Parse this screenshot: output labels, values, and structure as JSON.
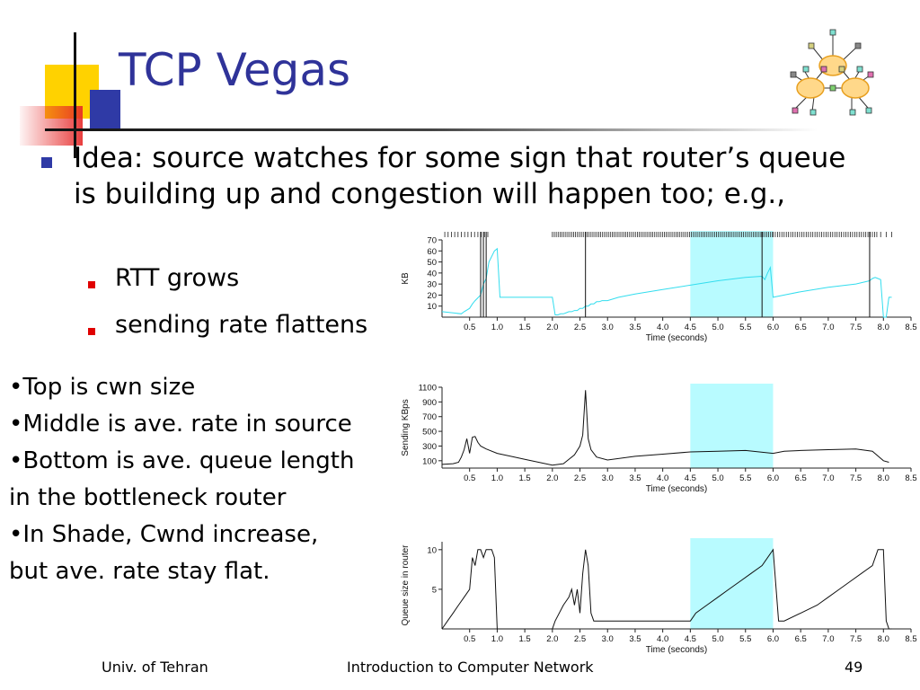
{
  "slide": {
    "title": "TCP Vegas",
    "bullet": "Idea: source watches for some sign that router’s queue is building up and congestion will happen too; e.g.,",
    "sub_bullets": [
      "RTT grows",
      "sending rate flattens"
    ],
    "notes": [
      "•Top is cwn size",
      "•Middle is ave. rate in source",
      "•Bottom is ave. queue length",
      "in the bottleneck router",
      "•In Shade, Cwnd increase,",
      "but ave. rate stay flat."
    ]
  },
  "footer": {
    "left": "Univ. of Tehran",
    "center": "Introduction to Computer Network",
    "page": "49"
  },
  "colors": {
    "title": "#2f3399",
    "accent_yellow": "#ffd200",
    "accent_blue": "#2f3aa6",
    "accent_red": "#e02020",
    "shade": "#b8fbff",
    "cwnd_line": "#33ddee"
  },
  "icons": {
    "logo": "network-clouds-icon"
  },
  "chart_data": [
    {
      "type": "line",
      "name": "cwnd",
      "ylabel": "KB",
      "xlabel": "Time (seconds)",
      "xlim": [
        0,
        8.5
      ],
      "ylim": [
        0,
        70
      ],
      "x_ticks": [
        0.5,
        1.0,
        1.5,
        2.0,
        2.5,
        3.0,
        3.5,
        4.0,
        4.5,
        5.0,
        5.5,
        6.0,
        6.5,
        7.0,
        7.5,
        8.0,
        8.5
      ],
      "y_ticks": [
        10,
        20,
        30,
        40,
        50,
        60,
        70
      ],
      "shade": [
        4.5,
        6.0
      ],
      "series": [
        {
          "values_x": [
            0.0,
            0.35,
            0.4,
            0.5,
            0.55,
            0.6,
            0.7,
            0.75,
            0.8,
            0.85,
            0.9,
            0.95,
            1.0,
            1.05,
            1.1,
            1.15,
            1.2,
            1.25,
            1.3,
            1.35,
            1.4,
            1.45,
            1.5,
            1.55,
            1.6,
            1.65,
            1.7,
            1.75,
            1.8,
            1.85,
            1.9,
            1.95,
            2.0,
            2.05,
            2.1,
            2.15,
            2.2,
            2.25,
            2.3,
            2.35,
            2.4,
            2.45,
            2.5,
            2.55,
            2.6,
            2.65,
            2.7,
            2.75,
            2.8,
            2.85,
            2.9,
            2.95,
            3.0,
            3.2,
            3.5,
            4.0,
            4.5,
            5.0,
            5.5,
            5.8,
            5.85,
            5.9,
            5.95,
            6.0,
            6.2,
            6.5,
            7.0,
            7.5,
            7.75,
            7.8,
            7.85,
            7.9,
            7.95,
            8.0,
            8.05,
            8.1,
            8.15
          ],
          "values_y": [
            5,
            3,
            5,
            8,
            12,
            15,
            20,
            30,
            35,
            50,
            55,
            60,
            62,
            18,
            18,
            18,
            18,
            18,
            18,
            18,
            18,
            18,
            18,
            18,
            18,
            18,
            18,
            18,
            18,
            18,
            18,
            18,
            18,
            2,
            2,
            3,
            3,
            4,
            5,
            5,
            6,
            6,
            8,
            8,
            10,
            10,
            12,
            12,
            14,
            14,
            15,
            15,
            15,
            18,
            21,
            25,
            29,
            33,
            36,
            37,
            34,
            40,
            45,
            18,
            20,
            23,
            27,
            30,
            33,
            35,
            36,
            35,
            34,
            0,
            0,
            18,
            18
          ]
        }
      ],
      "packet_marks": "tick rows along top edge (transmissions)"
    },
    {
      "type": "line",
      "name": "sending rate",
      "ylabel": "Sending KBps",
      "xlabel": "Time (seconds)",
      "xlim": [
        0,
        8.5
      ],
      "ylim": [
        0,
        1100
      ],
      "x_ticks": [
        0.5,
        1.0,
        1.5,
        2.0,
        2.5,
        3.0,
        3.5,
        4.0,
        4.5,
        5.0,
        5.5,
        6.0,
        6.5,
        7.0,
        7.5,
        8.0,
        8.5
      ],
      "y_ticks": [
        100,
        300,
        500,
        700,
        900,
        1100
      ],
      "shade": [
        4.5,
        6.0
      ],
      "series": [
        {
          "values_x": [
            0.0,
            0.2,
            0.3,
            0.35,
            0.4,
            0.45,
            0.5,
            0.55,
            0.6,
            0.65,
            0.7,
            0.8,
            1.0,
            1.5,
            2.0,
            2.2,
            2.4,
            2.5,
            2.55,
            2.6,
            2.65,
            2.7,
            2.8,
            3.0,
            3.5,
            4.0,
            4.5,
            5.0,
            5.5,
            6.0,
            6.2,
            6.5,
            7.0,
            7.5,
            7.8,
            8.0,
            8.1
          ],
          "values_y": [
            50,
            60,
            80,
            150,
            250,
            400,
            200,
            420,
            430,
            350,
            300,
            260,
            200,
            120,
            40,
            60,
            180,
            300,
            450,
            1060,
            400,
            250,
            150,
            110,
            160,
            190,
            220,
            230,
            240,
            200,
            230,
            240,
            250,
            260,
            230,
            100,
            80
          ]
        }
      ]
    },
    {
      "type": "line",
      "name": "queue size",
      "ylabel": "Queue size in router",
      "xlabel": "Time (seconds)",
      "xlim": [
        0,
        8.5
      ],
      "ylim": [
        0,
        11
      ],
      "x_ticks": [
        0.5,
        1.0,
        1.5,
        2.0,
        2.5,
        3.0,
        3.5,
        4.0,
        4.5,
        5.0,
        5.5,
        6.0,
        6.5,
        7.0,
        7.5,
        8.0,
        8.5
      ],
      "y_ticks": [
        5,
        10
      ],
      "shade": [
        4.5,
        6.0
      ],
      "series": [
        {
          "values_x": [
            0.0,
            0.1,
            0.2,
            0.3,
            0.4,
            0.5,
            0.55,
            0.6,
            0.65,
            0.7,
            0.75,
            0.8,
            0.9,
            0.95,
            1.0,
            1.5,
            2.0,
            2.05,
            2.2,
            2.3,
            2.35,
            2.4,
            2.45,
            2.5,
            2.55,
            2.6,
            2.65,
            2.7,
            2.75,
            2.8,
            3.0,
            3.5,
            4.0,
            4.5,
            4.6,
            4.8,
            5.0,
            5.2,
            5.4,
            5.6,
            5.8,
            6.0,
            6.1,
            6.2,
            6.5,
            6.8,
            7.0,
            7.2,
            7.4,
            7.6,
            7.8,
            7.9,
            8.0,
            8.05,
            8.1,
            8.15
          ],
          "values_y": [
            0,
            1,
            2,
            3,
            4,
            5,
            9,
            8,
            10,
            10,
            9,
            10,
            10,
            9,
            0,
            0,
            0,
            1,
            3,
            4,
            5,
            3,
            5,
            2,
            7,
            10,
            8,
            2,
            1,
            1,
            1,
            1,
            1,
            1,
            2,
            3,
            4,
            5,
            6,
            7,
            8,
            10,
            1,
            1,
            2,
            3,
            4,
            5,
            6,
            7,
            8,
            10,
            10,
            1,
            0,
            0
          ]
        }
      ]
    }
  ]
}
